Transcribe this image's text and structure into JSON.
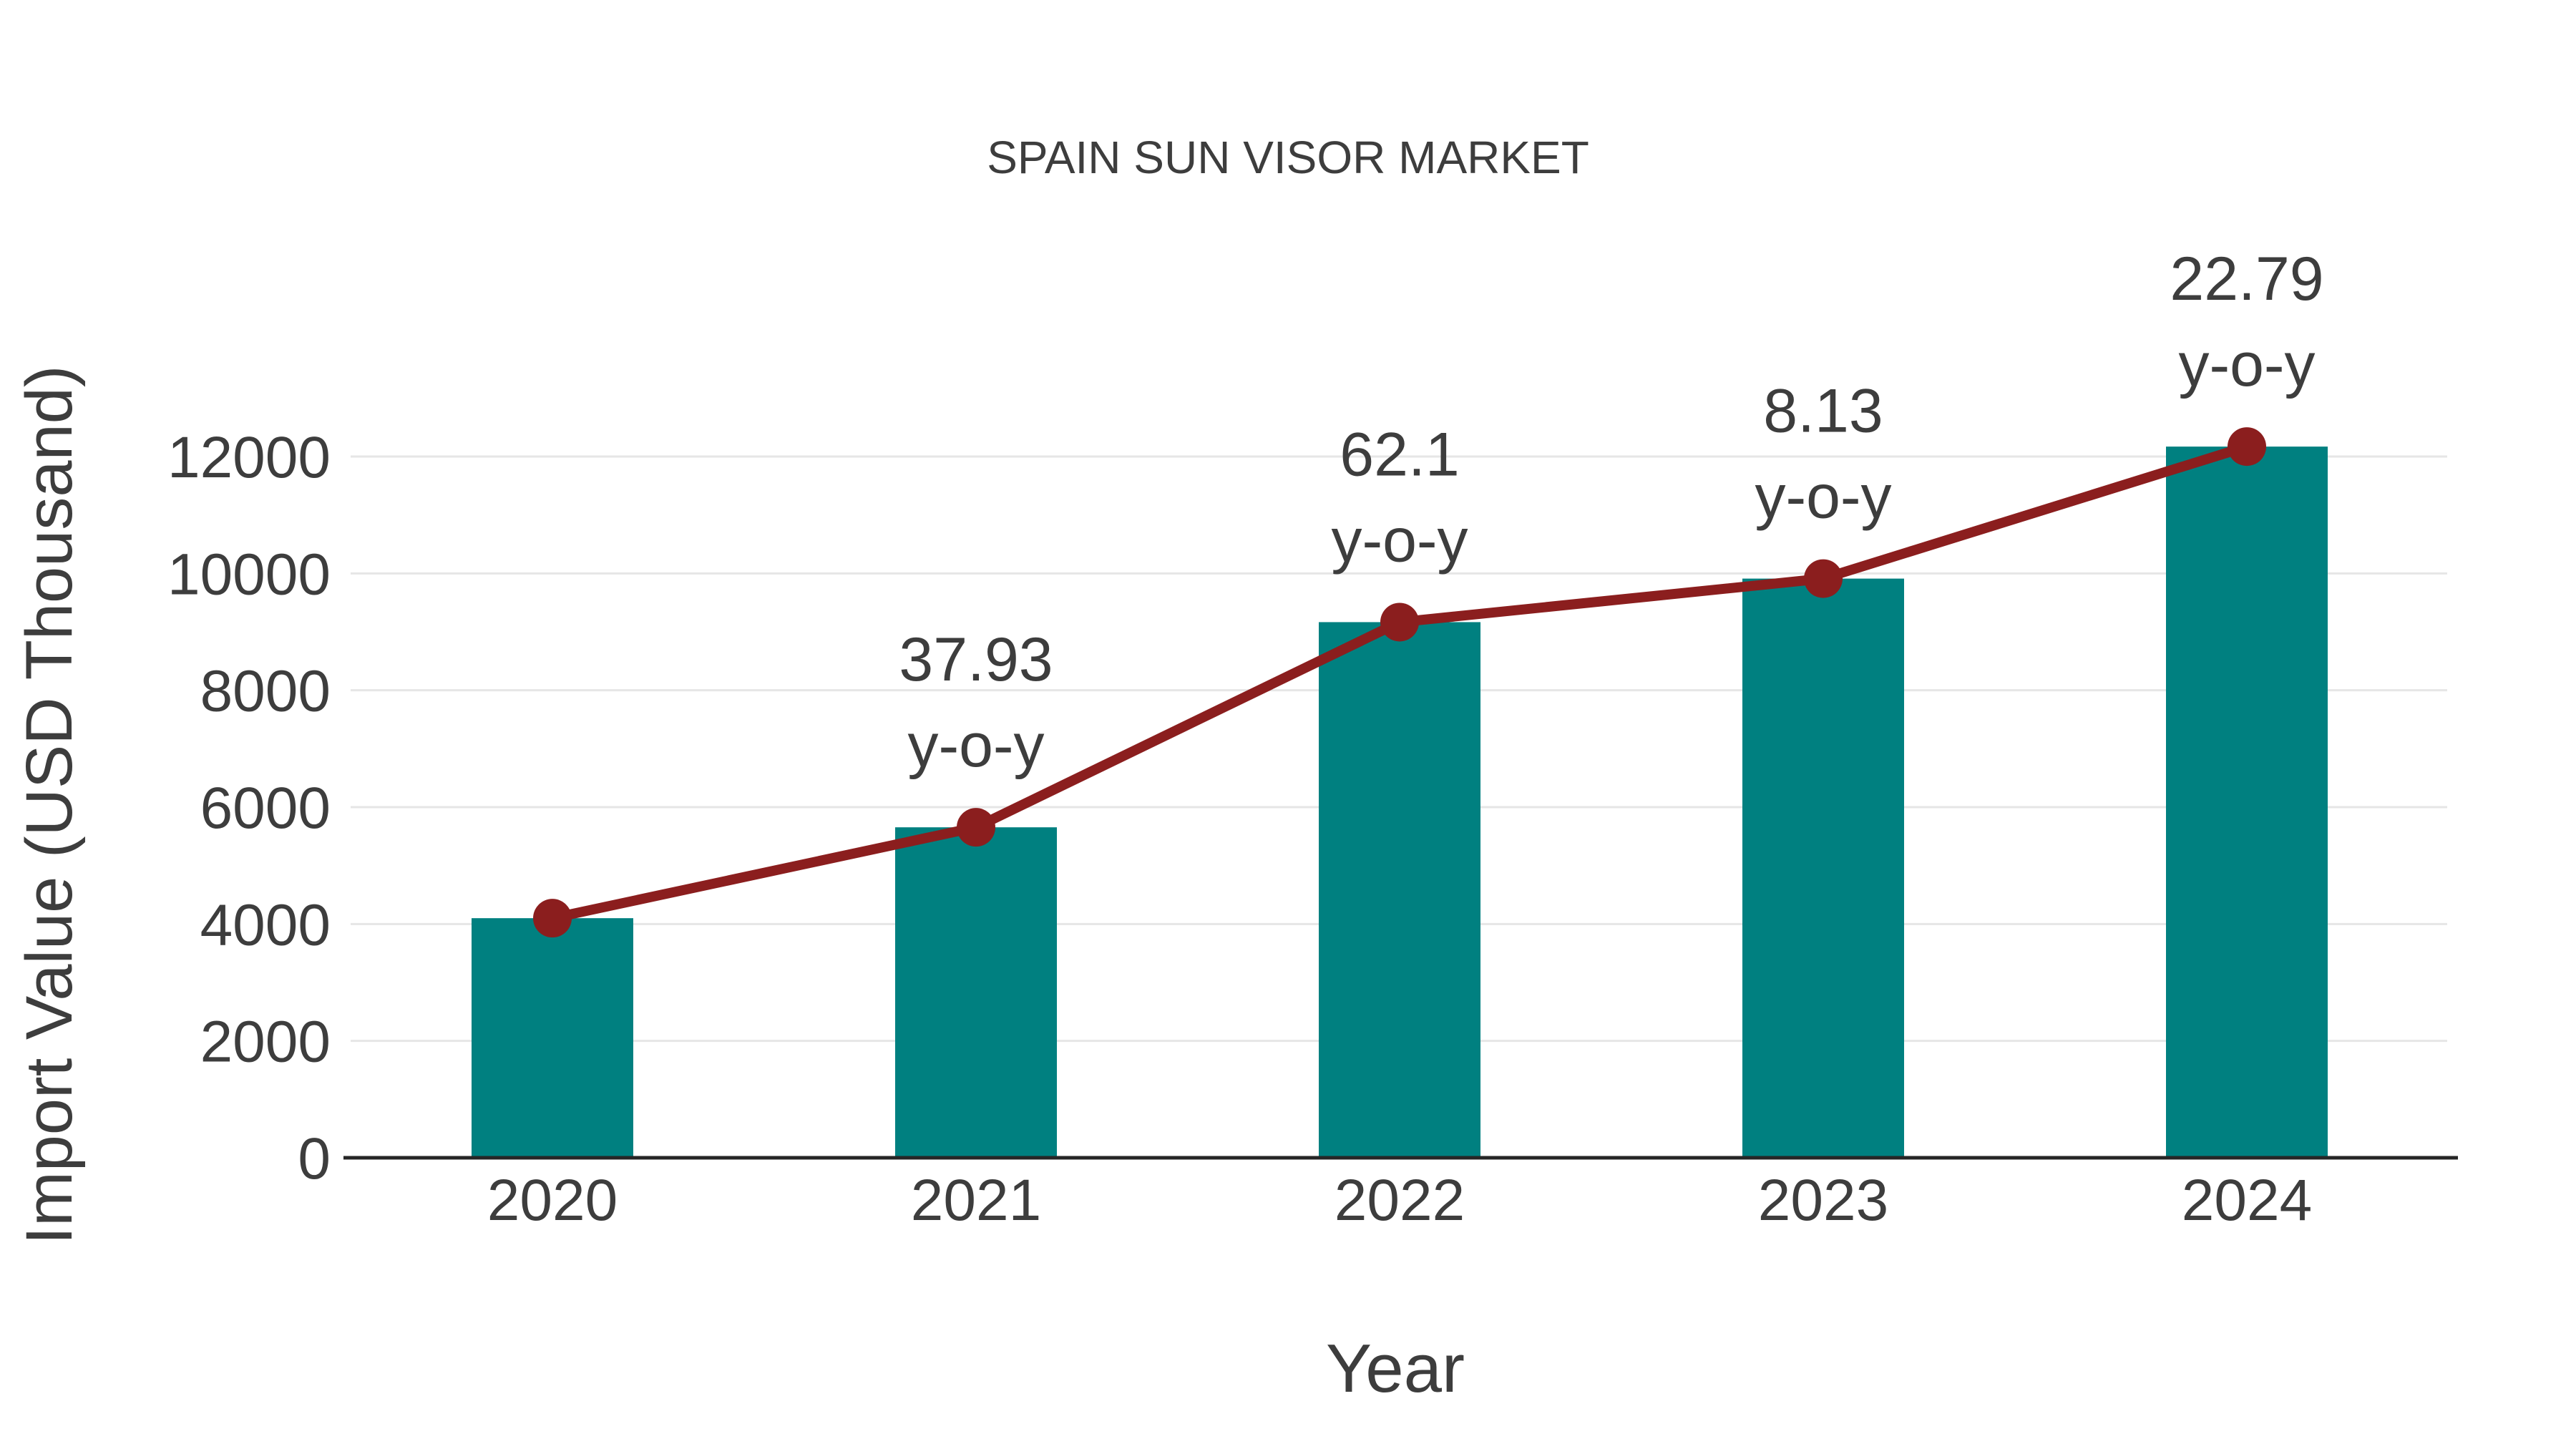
{
  "title": "SPAIN SUN VISOR MARKET",
  "chart_data": {
    "type": "bar",
    "title": "SPAIN SUN VISOR MARKET",
    "xlabel": "Year",
    "ylabel": "Import Value (USD Thousand)",
    "categories": [
      "2020",
      "2021",
      "2022",
      "2023",
      "2024"
    ],
    "series": [
      {
        "name": "Import Value bars",
        "type": "bar",
        "values": [
          4100,
          5655,
          9166,
          9911,
          12170
        ],
        "color": "#008080"
      },
      {
        "name": "Import Value trend line",
        "type": "line",
        "values": [
          4100,
          5655,
          9166,
          9911,
          12170
        ],
        "color": "#8B1E1E"
      }
    ],
    "annotations": [
      {
        "category": "2021",
        "value_label": "37.93",
        "suffix_label": "y-o-y"
      },
      {
        "category": "2022",
        "value_label": "62.1",
        "suffix_label": "y-o-y"
      },
      {
        "category": "2023",
        "value_label": "8.13",
        "suffix_label": "y-o-y"
      },
      {
        "category": "2024",
        "value_label": "22.79",
        "suffix_label": "y-o-y"
      }
    ],
    "yticks": [
      0,
      2000,
      4000,
      6000,
      8000,
      10000,
      12000
    ],
    "ytick_labels": [
      "0",
      "2000",
      "4000",
      "6000",
      "8000",
      "10000",
      "12000"
    ],
    "ylim": [
      0,
      12800
    ],
    "grid": "horizontal",
    "legend_position": "none",
    "colors": {
      "bar": "#008080",
      "line": "#8B1E1E",
      "marker": "#8B1E1E",
      "text": "#3d3d3d",
      "gridline": "#e6e6e6",
      "axis_line": "#262626",
      "background": "#ffffff"
    }
  }
}
